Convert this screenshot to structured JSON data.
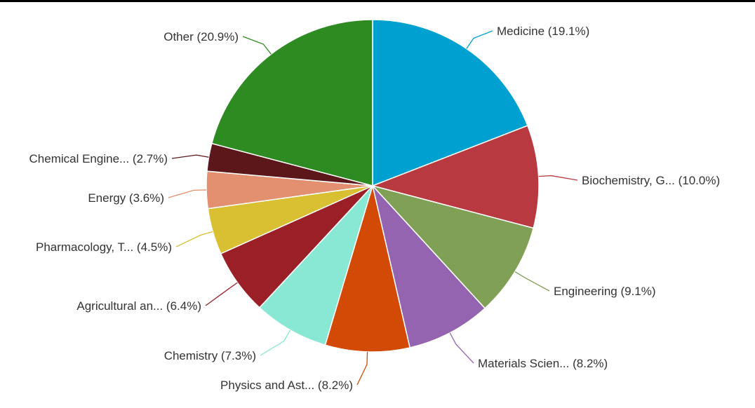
{
  "chart_data": {
    "type": "pie",
    "start_angle": "top, clockwise",
    "slices": [
      {
        "label": "Medicine (19.1%)",
        "value": 19.1,
        "color": "#00a0d1"
      },
      {
        "label": "Biochemistry, G... (10.0%)",
        "value": 10.0,
        "color": "#b83a40"
      },
      {
        "label": "Engineering (9.1%)",
        "value": 9.1,
        "color": "#7fa055"
      },
      {
        "label": "Materials Scien... (8.2%)",
        "value": 8.2,
        "color": "#9464b0"
      },
      {
        "label": "Physics and Ast... (8.2%)",
        "value": 8.2,
        "color": "#d24a05"
      },
      {
        "label": "Chemistry (7.3%)",
        "value": 7.3,
        "color": "#88e8d4"
      },
      {
        "label": "Agricultural an... (6.4%)",
        "value": 6.4,
        "color": "#9b1f26"
      },
      {
        "label": "Pharmacology, T... (4.5%)",
        "value": 4.5,
        "color": "#d9bf32"
      },
      {
        "label": "Energy (3.6%)",
        "value": 3.6,
        "color": "#e29070"
      },
      {
        "label": "Chemical Engine... (2.7%)",
        "value": 2.7,
        "color": "#5b1719"
      },
      {
        "label": "Other (20.9%)",
        "value": 20.9,
        "color": "#2e8b22"
      }
    ]
  }
}
